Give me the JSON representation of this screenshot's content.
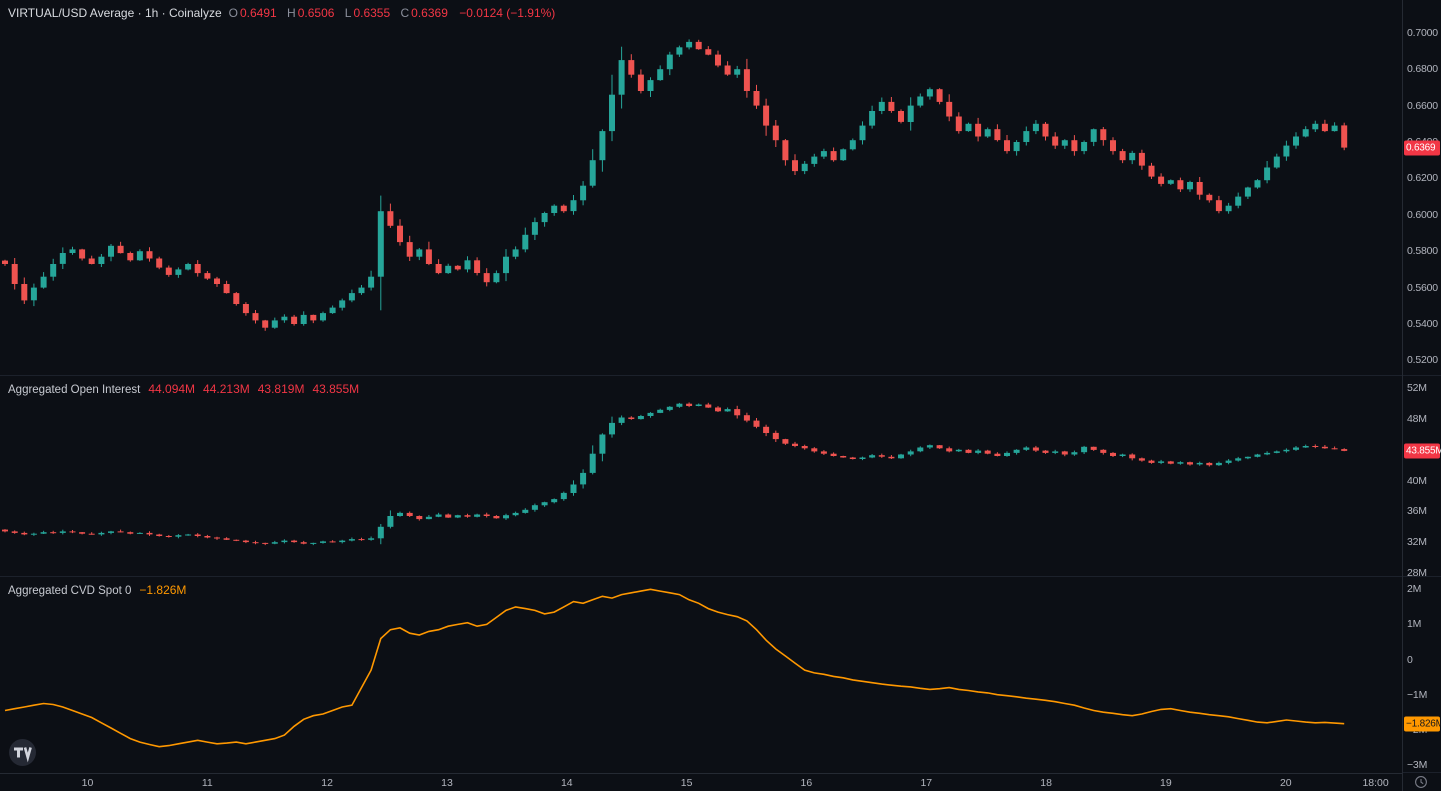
{
  "colors": {
    "background": "#0c0f15",
    "up": "#26a69a",
    "down": "#ef5350",
    "badge_red": "#f23645",
    "cvd_line": "#ff9800",
    "cvd_badge": "#ff9800",
    "text_primary": "#d8dbe0",
    "text_secondary": "#b2b5be",
    "divider": "#1c212b"
  },
  "header": {
    "title": "VIRTUAL/USD Average · 1h · Coinalyze",
    "ohlc_labels": {
      "o": "O",
      "h": "H",
      "l": "L",
      "c": "C"
    },
    "ohlc_values": {
      "o": "0.6491",
      "h": "0.6506",
      "l": "0.6355",
      "c": "0.6369"
    },
    "change": "−0.0124 (−1.91%)"
  },
  "oi_legend": {
    "title": "Aggregated Open Interest",
    "values": [
      "44.094M",
      "44.213M",
      "43.819M",
      "43.855M"
    ]
  },
  "cvd_legend": {
    "title": "Aggregated CVD Spot 0",
    "value": "−1.826M"
  },
  "badges": {
    "price": {
      "text": "0.6369",
      "value": 0.6369
    },
    "oi": {
      "text": "43.855M",
      "value": 43.855
    },
    "cvd": {
      "text": "−1.826M",
      "value": -1.826
    }
  },
  "time_axis": {
    "ticks": [
      {
        "label": "10",
        "day": 10
      },
      {
        "label": "11",
        "day": 11
      },
      {
        "label": "12",
        "day": 12
      },
      {
        "label": "13",
        "day": 13
      },
      {
        "label": "14",
        "day": 14
      },
      {
        "label": "15",
        "day": 15
      },
      {
        "label": "16",
        "day": 16
      },
      {
        "label": "17",
        "day": 17
      },
      {
        "label": "18",
        "day": 18
      },
      {
        "label": "19",
        "day": 19
      },
      {
        "label": "20",
        "day": 20
      },
      {
        "label": "18:00",
        "day": 20.75
      }
    ]
  },
  "chart_data": [
    {
      "type": "candlestick",
      "panel": "price",
      "title": "VIRTUAL/USD Average · 1h · Coinalyze",
      "xlim": [
        9.27,
        20.97
      ],
      "x_start_day": 9.312,
      "x_day_step": 0.0804,
      "ylim": [
        0.512,
        0.718
      ],
      "y_ticks": [
        {
          "label": "0.7000",
          "value": 0.7
        },
        {
          "label": "0.6800",
          "value": 0.68
        },
        {
          "label": "0.6600",
          "value": 0.66
        },
        {
          "label": "0.6400",
          "value": 0.64
        },
        {
          "label": "0.6200",
          "value": 0.62
        },
        {
          "label": "0.6000",
          "value": 0.6
        },
        {
          "label": "0.5800",
          "value": 0.58
        },
        {
          "label": "0.5600",
          "value": 0.56
        },
        {
          "label": "0.5400",
          "value": 0.54
        },
        {
          "label": "0.5200",
          "value": 0.52
        }
      ],
      "closes": [
        0.573,
        0.562,
        0.553,
        0.56,
        0.566,
        0.573,
        0.579,
        0.581,
        0.576,
        0.573,
        0.577,
        0.583,
        0.579,
        0.575,
        0.58,
        0.576,
        0.571,
        0.567,
        0.57,
        0.573,
        0.568,
        0.565,
        0.562,
        0.557,
        0.551,
        0.546,
        0.542,
        0.538,
        0.542,
        0.544,
        0.54,
        0.545,
        0.542,
        0.546,
        0.549,
        0.553,
        0.557,
        0.56,
        0.566,
        0.602,
        0.594,
        0.585,
        0.577,
        0.581,
        0.573,
        0.568,
        0.572,
        0.57,
        0.575,
        0.568,
        0.563,
        0.568,
        0.577,
        0.581,
        0.589,
        0.596,
        0.601,
        0.605,
        0.602,
        0.608,
        0.616,
        0.63,
        0.646,
        0.666,
        0.685,
        0.677,
        0.668,
        0.674,
        0.68,
        0.688,
        0.692,
        0.695,
        0.691,
        0.688,
        0.682,
        0.677,
        0.68,
        0.668,
        0.66,
        0.649,
        0.641,
        0.63,
        0.624,
        0.628,
        0.632,
        0.635,
        0.63,
        0.636,
        0.641,
        0.649,
        0.657,
        0.662,
        0.657,
        0.651,
        0.66,
        0.665,
        0.669,
        0.662,
        0.654,
        0.646,
        0.65,
        0.643,
        0.647,
        0.641,
        0.635,
        0.64,
        0.646,
        0.65,
        0.643,
        0.638,
        0.641,
        0.635,
        0.64,
        0.647,
        0.641,
        0.635,
        0.63,
        0.634,
        0.627,
        0.621,
        0.617,
        0.619,
        0.614,
        0.618,
        0.611,
        0.608,
        0.602,
        0.605,
        0.61,
        0.615,
        0.619,
        0.626,
        0.632,
        0.638,
        0.643,
        0.647,
        0.65,
        0.646,
        0.649,
        0.6369
      ],
      "last_candle": {
        "open": 0.6491,
        "high": 0.6506,
        "low": 0.6355,
        "close": 0.6369
      }
    },
    {
      "type": "candlestick",
      "panel": "open-interest",
      "title": "Aggregated Open Interest",
      "unit": "M",
      "ylim": [
        27.6,
        53.6
      ],
      "y_ticks": [
        {
          "label": "52M",
          "value": 52
        },
        {
          "label": "48M",
          "value": 48
        },
        {
          "label": "44M",
          "value": 44
        },
        {
          "label": "40M",
          "value": 40
        },
        {
          "label": "36M",
          "value": 36
        },
        {
          "label": "32M",
          "value": 32
        },
        {
          "label": "28M",
          "value": 28
        }
      ],
      "closes": [
        33.4,
        33.2,
        33.0,
        33.1,
        33.3,
        33.2,
        33.4,
        33.3,
        33.1,
        33.0,
        33.2,
        33.4,
        33.3,
        33.1,
        33.2,
        33.0,
        32.8,
        32.7,
        32.9,
        33.0,
        32.8,
        32.6,
        32.5,
        32.3,
        32.2,
        32.0,
        31.9,
        31.8,
        32.0,
        32.2,
        32.0,
        31.8,
        31.9,
        32.1,
        32.0,
        32.2,
        32.4,
        32.3,
        32.5,
        34.0,
        35.4,
        35.8,
        35.4,
        35.0,
        35.3,
        35.6,
        35.2,
        35.5,
        35.3,
        35.6,
        35.4,
        35.1,
        35.5,
        35.8,
        36.2,
        36.8,
        37.2,
        37.6,
        38.4,
        39.5,
        41.0,
        43.5,
        46.0,
        47.5,
        48.2,
        48.0,
        48.4,
        48.8,
        49.2,
        49.6,
        50.0,
        49.7,
        49.9,
        49.5,
        49.0,
        49.3,
        48.5,
        47.8,
        47.0,
        46.2,
        45.4,
        44.8,
        44.5,
        44.2,
        43.8,
        43.5,
        43.2,
        43.0,
        42.8,
        43.0,
        43.3,
        43.1,
        42.9,
        43.4,
        43.8,
        44.3,
        44.6,
        44.2,
        43.8,
        44.0,
        43.6,
        43.9,
        43.5,
        43.2,
        43.6,
        44.0,
        44.3,
        43.9,
        43.6,
        43.8,
        43.4,
        43.7,
        44.4,
        44.0,
        43.6,
        43.2,
        43.4,
        42.9,
        42.6,
        42.3,
        42.5,
        42.2,
        42.4,
        42.1,
        42.3,
        42.0,
        42.3,
        42.6,
        42.9,
        43.1,
        43.4,
        43.6,
        43.8,
        44.0,
        44.3,
        44.5,
        44.4,
        44.2,
        44.094,
        43.855
      ],
      "last_candle": {
        "open": 44.094,
        "high": 44.213,
        "low": 43.819,
        "close": 43.855
      }
    },
    {
      "type": "line",
      "panel": "cvd",
      "title": "Aggregated CVD Spot 0",
      "unit": "M",
      "ylim": [
        -3.23,
        2.35
      ],
      "y_ticks": [
        {
          "label": "2M",
          "value": 2
        },
        {
          "label": "1M",
          "value": 1
        },
        {
          "label": "0",
          "value": 0
        },
        {
          "label": "−1M",
          "value": -1
        },
        {
          "label": "−2M",
          "value": -2
        },
        {
          "label": "−3M",
          "value": -3
        }
      ],
      "values": [
        -1.45,
        -1.4,
        -1.35,
        -1.3,
        -1.25,
        -1.28,
        -1.35,
        -1.45,
        -1.55,
        -1.65,
        -1.8,
        -1.95,
        -2.1,
        -2.25,
        -2.35,
        -2.42,
        -2.48,
        -2.45,
        -2.4,
        -2.35,
        -2.3,
        -2.35,
        -2.4,
        -2.38,
        -2.35,
        -2.4,
        -2.35,
        -2.3,
        -2.25,
        -2.15,
        -1.9,
        -1.7,
        -1.6,
        -1.55,
        -1.45,
        -1.35,
        -1.3,
        -0.8,
        -0.3,
        0.6,
        0.85,
        0.9,
        0.75,
        0.7,
        0.8,
        0.85,
        0.95,
        1.0,
        1.05,
        0.95,
        1.0,
        1.2,
        1.4,
        1.5,
        1.45,
        1.4,
        1.3,
        1.35,
        1.5,
        1.65,
        1.6,
        1.7,
        1.8,
        1.75,
        1.85,
        1.9,
        1.95,
        2.0,
        1.95,
        1.9,
        1.85,
        1.7,
        1.6,
        1.45,
        1.35,
        1.28,
        1.22,
        1.1,
        0.85,
        0.55,
        0.3,
        0.1,
        -0.1,
        -0.3,
        -0.38,
        -0.42,
        -0.48,
        -0.52,
        -0.58,
        -0.62,
        -0.66,
        -0.7,
        -0.73,
        -0.76,
        -0.78,
        -0.82,
        -0.85,
        -0.83,
        -0.8,
        -0.85,
        -0.88,
        -0.92,
        -0.95,
        -1.0,
        -1.03,
        -1.06,
        -1.1,
        -1.13,
        -1.16,
        -1.2,
        -1.25,
        -1.3,
        -1.38,
        -1.45,
        -1.5,
        -1.53,
        -1.57,
        -1.6,
        -1.55,
        -1.48,
        -1.42,
        -1.4,
        -1.45,
        -1.5,
        -1.53,
        -1.57,
        -1.6,
        -1.63,
        -1.68,
        -1.73,
        -1.78,
        -1.8,
        -1.76,
        -1.72,
        -1.75,
        -1.78,
        -1.8,
        -1.79,
        -1.81,
        -1.826
      ]
    }
  ]
}
